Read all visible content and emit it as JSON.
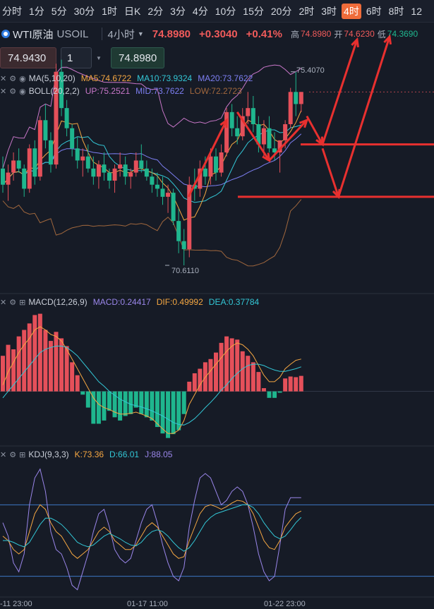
{
  "timeframes": [
    "分时",
    "1分",
    "5分",
    "30分",
    "1时",
    "日K",
    "2分",
    "3分",
    "4分",
    "10分",
    "15分",
    "20分",
    "2时",
    "3时",
    "4时",
    "6时",
    "8时",
    "12"
  ],
  "active_timeframe": "4时",
  "symbol": {
    "name": "WTI原油",
    "code": "USOIL",
    "period": "4小时",
    "price": "74.8980",
    "change": "+0.3040",
    "change_pct": "+0.41%",
    "high_label": "高",
    "high": "74.8980",
    "open_label": "开",
    "open": "74.6230",
    "low_label": "低",
    "low": "74.3690"
  },
  "order": {
    "sell_price": "74.9430",
    "quantity": "1",
    "buy_price": "74.8980"
  },
  "legend": {
    "ma_name": "MA(5,10,20)",
    "ma5": "MA5:74.6722",
    "ma10": "MA10:73.9324",
    "ma20": "MA20:73.7622",
    "boll_name": "BOLL(20,2,2)",
    "boll_up": "UP:75.2521",
    "boll_mid": "MID:73.7622",
    "boll_low": "LOW:72.2723",
    "macd_name": "MACD(12,26,9)",
    "macd": "MACD:0.24417",
    "dif": "DIF:0.49992",
    "dea": "DEA:0.37784",
    "kdj_name": "KDJ(9,3,3)",
    "k": "K:73.36",
    "d": "D:66.01",
    "j": "J:88.05"
  },
  "colors": {
    "up": "#e5505a",
    "down": "#1fb68e",
    "ma5": "#f5a742",
    "ma10": "#33c7d6",
    "ma20": "#7d7ff2",
    "boll_up": "#c977c9",
    "boll_low": "#a0673d",
    "dif": "#f5a742",
    "dea": "#33c7d6",
    "k": "#f5a742",
    "d": "#33c7d6",
    "j": "#9a86ea",
    "annotation": "#e8302f",
    "kdj_level": "#3d78c4"
  },
  "x_labels": [
    "-11 23:00",
    "01-17 11:00",
    "01-22 23:00"
  ],
  "chart_data": {
    "type": "candlestick",
    "price_labels": [
      "75.4070",
      "70.6110"
    ],
    "candles": [
      [
        73.0,
        73.3,
        72.4,
        72.6
      ],
      [
        72.6,
        73.1,
        72.2,
        72.9
      ],
      [
        72.9,
        73.4,
        72.7,
        73.2
      ],
      [
        73.2,
        73.5,
        72.9,
        73.0
      ],
      [
        73.0,
        73.1,
        72.3,
        72.5
      ],
      [
        72.5,
        73.6,
        72.4,
        73.5
      ],
      [
        73.5,
        73.7,
        72.6,
        72.8
      ],
      [
        72.8,
        74.3,
        72.7,
        74.2
      ],
      [
        74.2,
        74.6,
        73.5,
        73.7
      ],
      [
        73.7,
        73.9,
        72.9,
        73.1
      ],
      [
        73.1,
        75.6,
        73.0,
        75.4
      ],
      [
        75.4,
        75.7,
        74.3,
        74.5
      ],
      [
        74.5,
        74.7,
        73.8,
        74.0
      ],
      [
        74.0,
        74.1,
        73.3,
        73.5
      ],
      [
        73.5,
        73.8,
        73.0,
        73.2
      ],
      [
        73.2,
        73.5,
        72.8,
        73.3
      ],
      [
        73.3,
        73.6,
        72.9,
        73.0
      ],
      [
        73.0,
        73.3,
        72.6,
        72.8
      ],
      [
        72.8,
        73.2,
        72.5,
        73.1
      ],
      [
        73.1,
        73.4,
        72.7,
        72.9
      ],
      [
        72.9,
        73.0,
        72.5,
        72.7
      ],
      [
        72.7,
        73.1,
        72.4,
        73.0
      ],
      [
        73.0,
        73.4,
        72.8,
        73.1
      ],
      [
        73.1,
        73.3,
        72.6,
        72.8
      ],
      [
        72.8,
        73.0,
        72.5,
        72.9
      ],
      [
        72.9,
        73.4,
        72.8,
        73.2
      ],
      [
        73.2,
        73.6,
        72.9,
        73.0
      ],
      [
        73.0,
        73.2,
        72.7,
        72.8
      ],
      [
        72.8,
        73.0,
        72.4,
        72.6
      ],
      [
        72.6,
        72.9,
        72.3,
        72.5
      ],
      [
        72.5,
        72.8,
        72.1,
        72.3
      ],
      [
        72.3,
        72.6,
        71.9,
        72.4
      ],
      [
        72.4,
        72.5,
        71.6,
        71.7
      ],
      [
        71.7,
        72.0,
        70.9,
        71.2
      ],
      [
        71.2,
        71.5,
        70.6,
        71.0
      ],
      [
        71.0,
        72.8,
        70.8,
        72.6
      ],
      [
        72.6,
        73.0,
        72.2,
        72.5
      ],
      [
        72.5,
        73.2,
        72.3,
        73.0
      ],
      [
        73.0,
        73.3,
        72.6,
        72.8
      ],
      [
        72.8,
        73.5,
        72.6,
        73.3
      ],
      [
        73.3,
        73.5,
        72.7,
        72.9
      ],
      [
        72.9,
        73.6,
        72.8,
        73.4
      ],
      [
        73.4,
        74.5,
        73.3,
        74.4
      ],
      [
        74.4,
        74.6,
        73.8,
        74.0
      ],
      [
        74.0,
        74.3,
        73.6,
        73.8
      ],
      [
        73.8,
        74.5,
        73.7,
        74.3
      ],
      [
        74.3,
        74.9,
        74.1,
        74.5
      ],
      [
        74.5,
        74.8,
        73.9,
        74.1
      ],
      [
        74.1,
        74.3,
        73.4,
        73.6
      ],
      [
        73.6,
        74.2,
        73.3,
        74.0
      ],
      [
        74.0,
        74.3,
        73.4,
        73.5
      ],
      [
        73.5,
        73.9,
        73.2,
        73.4
      ],
      [
        73.4,
        73.7,
        72.9,
        73.7
      ],
      [
        73.7,
        74.2,
        73.5,
        74.1
      ],
      [
        74.1,
        75.0,
        74.0,
        74.9
      ],
      [
        74.9,
        75.4,
        74.3,
        74.6
      ],
      [
        74.6,
        74.9,
        74.4,
        74.9
      ]
    ],
    "macd": [
      0.55,
      0.72,
      0.65,
      0.85,
      0.95,
      1.05,
      1.18,
      1.2,
      0.95,
      0.78,
      0.92,
      0.82,
      0.7,
      0.45,
      0.25,
      -0.05,
      -0.25,
      -0.5,
      -0.5,
      -0.45,
      -0.3,
      -0.4,
      -0.45,
      -0.38,
      -0.35,
      -0.25,
      -0.35,
      -0.4,
      -0.45,
      -0.55,
      -0.65,
      -0.72,
      -0.66,
      -0.6,
      -0.35,
      0.15,
      0.28,
      0.35,
      0.45,
      0.5,
      0.6,
      0.75,
      0.85,
      0.82,
      0.8,
      0.62,
      0.55,
      0.45,
      0.3,
      0.05,
      -0.1,
      -0.1,
      -0.02,
      0.2,
      0.23,
      0.22,
      0.24
    ],
    "dif": [
      0.1,
      0.3,
      0.45,
      0.6,
      0.72,
      0.82,
      0.95,
      1.0,
      0.95,
      0.88,
      0.85,
      0.78,
      0.65,
      0.5,
      0.35,
      0.2,
      0.05,
      -0.1,
      -0.2,
      -0.25,
      -0.28,
      -0.32,
      -0.35,
      -0.35,
      -0.34,
      -0.32,
      -0.35,
      -0.38,
      -0.42,
      -0.5,
      -0.58,
      -0.65,
      -0.65,
      -0.6,
      -0.45,
      -0.2,
      -0.05,
      0.1,
      0.22,
      0.32,
      0.42,
      0.52,
      0.62,
      0.7,
      0.75,
      0.72,
      0.65,
      0.55,
      0.4,
      0.25,
      0.15,
      0.15,
      0.22,
      0.35,
      0.42,
      0.48,
      0.5
    ],
    "dea": [
      -0.1,
      0.0,
      0.1,
      0.2,
      0.3,
      0.4,
      0.5,
      0.6,
      0.65,
      0.68,
      0.7,
      0.7,
      0.68,
      0.62,
      0.55,
      0.45,
      0.35,
      0.25,
      0.15,
      0.08,
      0.0,
      -0.06,
      -0.12,
      -0.16,
      -0.2,
      -0.22,
      -0.24,
      -0.27,
      -0.3,
      -0.34,
      -0.38,
      -0.43,
      -0.48,
      -0.51,
      -0.52,
      -0.48,
      -0.42,
      -0.34,
      -0.25,
      -0.17,
      -0.08,
      0.02,
      0.1,
      0.2,
      0.28,
      0.35,
      0.4,
      0.42,
      0.42,
      0.4,
      0.36,
      0.33,
      0.31,
      0.31,
      0.33,
      0.35,
      0.38
    ],
    "kdj_k": [
      45,
      40,
      30,
      25,
      30,
      50,
      70,
      80,
      75,
      60,
      50,
      45,
      35,
      25,
      20,
      25,
      30,
      40,
      50,
      55,
      50,
      40,
      35,
      30,
      30,
      35,
      45,
      55,
      60,
      55,
      45,
      35,
      25,
      20,
      22,
      40,
      55,
      70,
      78,
      80,
      78,
      75,
      78,
      82,
      85,
      84,
      80,
      70,
      55,
      40,
      32,
      30,
      40,
      55,
      63,
      70,
      73
    ],
    "kdj_d": [
      40,
      40,
      38,
      35,
      33,
      38,
      48,
      58,
      65,
      65,
      62,
      58,
      52,
      45,
      38,
      35,
      33,
      35,
      40,
      45,
      48,
      45,
      42,
      38,
      35,
      34,
      38,
      45,
      50,
      52,
      50,
      45,
      38,
      32,
      28,
      32,
      40,
      50,
      60,
      66,
      70,
      72,
      74,
      76,
      78,
      80,
      80,
      77,
      70,
      60,
      52,
      45,
      42,
      45,
      52,
      60,
      66
    ],
    "kdj_j": [
      60,
      45,
      15,
      5,
      25,
      80,
      110,
      120,
      95,
      50,
      30,
      25,
      10,
      -10,
      -15,
      5,
      25,
      50,
      70,
      75,
      55,
      30,
      20,
      15,
      20,
      40,
      60,
      75,
      80,
      60,
      35,
      15,
      0,
      -5,
      10,
      55,
      85,
      110,
      115,
      110,
      95,
      80,
      85,
      95,
      100,
      95,
      80,
      55,
      25,
      5,
      -5,
      0,
      35,
      75,
      88,
      88,
      88
    ],
    "arrows": [
      {
        "from": [
          74.6,
          24
        ],
        "to": [
          75.2,
          29
        ]
      },
      {
        "from": [
          75.0,
          29
        ],
        "to": [
          74.2,
          32
        ]
      },
      {
        "from": [
          74.2,
          32
        ],
        "to": [
          75.1,
          35
        ]
      }
    ]
  }
}
